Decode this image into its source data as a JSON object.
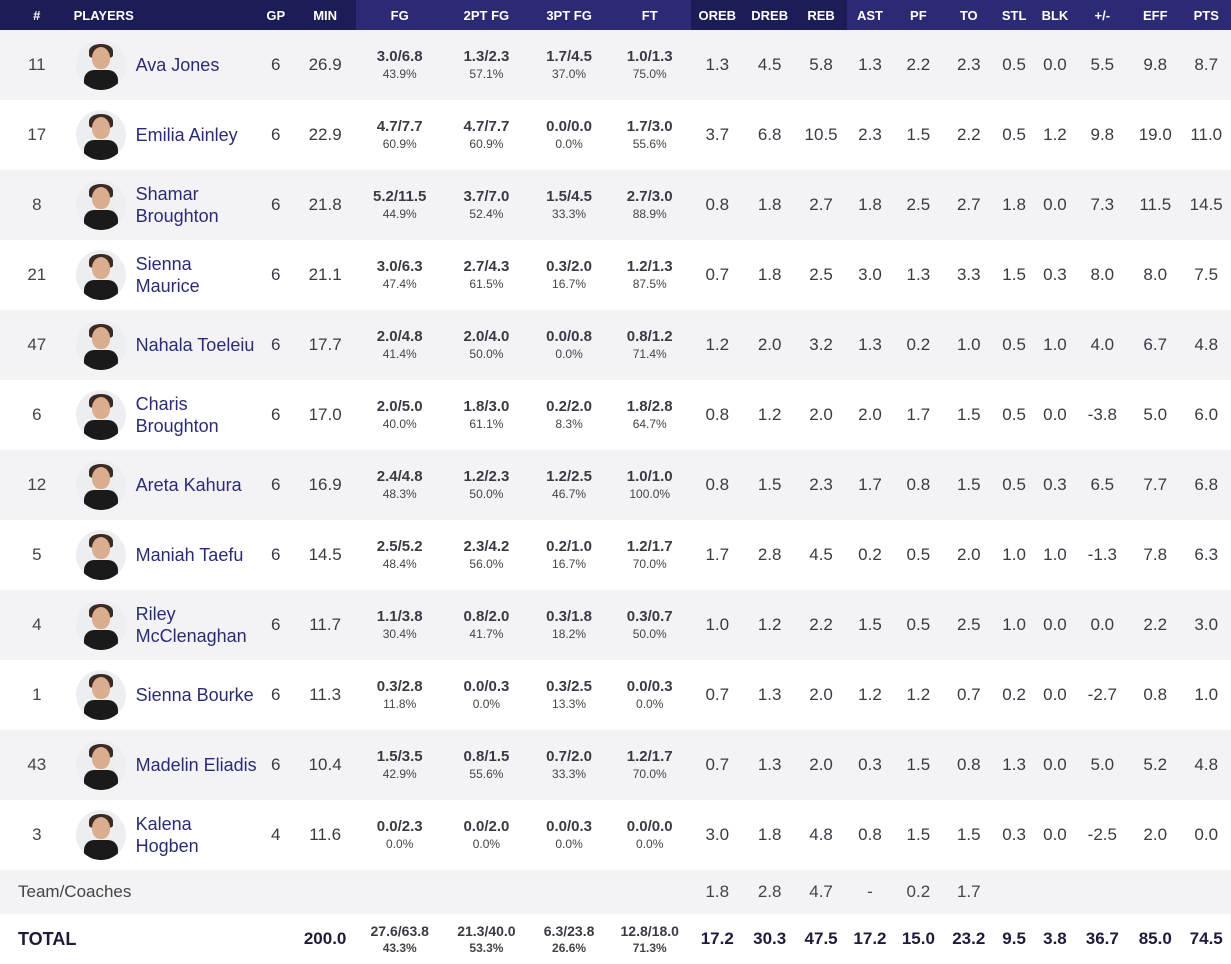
{
  "headers": [
    "#",
    "PLAYERS",
    "GP",
    "MIN",
    "FG",
    "2PT FG",
    "3PT FG",
    "FT",
    "OREB",
    "DREB",
    "REB",
    "AST",
    "PF",
    "TO",
    "STL",
    "BLK",
    "+/-",
    "EFF",
    "PTS"
  ],
  "players": [
    {
      "num": "11",
      "name_lines": [
        "Ava Jones"
      ],
      "gp": "6",
      "min": "26.9",
      "fg": [
        "3.0/6.8",
        "43.9%"
      ],
      "fg2": [
        "1.3/2.3",
        "57.1%"
      ],
      "fg3": [
        "1.7/4.5",
        "37.0%"
      ],
      "ft": [
        "1.0/1.3",
        "75.0%"
      ],
      "oreb": "1.3",
      "dreb": "4.5",
      "reb": "5.8",
      "ast": "1.3",
      "pf": "2.2",
      "to": "2.3",
      "stl": "0.5",
      "blk": "0.0",
      "pm": "5.5",
      "eff": "9.8",
      "pts": "8.7"
    },
    {
      "num": "17",
      "name_lines": [
        "Emilia Ainley"
      ],
      "gp": "6",
      "min": "22.9",
      "fg": [
        "4.7/7.7",
        "60.9%"
      ],
      "fg2": [
        "4.7/7.7",
        "60.9%"
      ],
      "fg3": [
        "0.0/0.0",
        "0.0%"
      ],
      "ft": [
        "1.7/3.0",
        "55.6%"
      ],
      "oreb": "3.7",
      "dreb": "6.8",
      "reb": "10.5",
      "ast": "2.3",
      "pf": "1.5",
      "to": "2.2",
      "stl": "0.5",
      "blk": "1.2",
      "pm": "9.8",
      "eff": "19.0",
      "pts": "11.0"
    },
    {
      "num": "8",
      "name_lines": [
        "Shamar",
        "Broughton"
      ],
      "gp": "6",
      "min": "21.8",
      "fg": [
        "5.2/11.5",
        "44.9%"
      ],
      "fg2": [
        "3.7/7.0",
        "52.4%"
      ],
      "fg3": [
        "1.5/4.5",
        "33.3%"
      ],
      "ft": [
        "2.7/3.0",
        "88.9%"
      ],
      "oreb": "0.8",
      "dreb": "1.8",
      "reb": "2.7",
      "ast": "1.8",
      "pf": "2.5",
      "to": "2.7",
      "stl": "1.8",
      "blk": "0.0",
      "pm": "7.3",
      "eff": "11.5",
      "pts": "14.5"
    },
    {
      "num": "21",
      "name_lines": [
        "Sienna",
        "Maurice"
      ],
      "gp": "6",
      "min": "21.1",
      "fg": [
        "3.0/6.3",
        "47.4%"
      ],
      "fg2": [
        "2.7/4.3",
        "61.5%"
      ],
      "fg3": [
        "0.3/2.0",
        "16.7%"
      ],
      "ft": [
        "1.2/1.3",
        "87.5%"
      ],
      "oreb": "0.7",
      "dreb": "1.8",
      "reb": "2.5",
      "ast": "3.0",
      "pf": "1.3",
      "to": "3.3",
      "stl": "1.5",
      "blk": "0.3",
      "pm": "8.0",
      "eff": "8.0",
      "pts": "7.5"
    },
    {
      "num": "47",
      "name_lines": [
        "Nahala Toeleiu"
      ],
      "gp": "6",
      "min": "17.7",
      "fg": [
        "2.0/4.8",
        "41.4%"
      ],
      "fg2": [
        "2.0/4.0",
        "50.0%"
      ],
      "fg3": [
        "0.0/0.8",
        "0.0%"
      ],
      "ft": [
        "0.8/1.2",
        "71.4%"
      ],
      "oreb": "1.2",
      "dreb": "2.0",
      "reb": "3.2",
      "ast": "1.3",
      "pf": "0.2",
      "to": "1.0",
      "stl": "0.5",
      "blk": "1.0",
      "pm": "4.0",
      "eff": "6.7",
      "pts": "4.8"
    },
    {
      "num": "6",
      "name_lines": [
        "Charis",
        "Broughton"
      ],
      "gp": "6",
      "min": "17.0",
      "fg": [
        "2.0/5.0",
        "40.0%"
      ],
      "fg2": [
        "1.8/3.0",
        "61.1%"
      ],
      "fg3": [
        "0.2/2.0",
        "8.3%"
      ],
      "ft": [
        "1.8/2.8",
        "64.7%"
      ],
      "oreb": "0.8",
      "dreb": "1.2",
      "reb": "2.0",
      "ast": "2.0",
      "pf": "1.7",
      "to": "1.5",
      "stl": "0.5",
      "blk": "0.0",
      "pm": "-3.8",
      "eff": "5.0",
      "pts": "6.0"
    },
    {
      "num": "12",
      "name_lines": [
        "Areta Kahura"
      ],
      "gp": "6",
      "min": "16.9",
      "fg": [
        "2.4/4.8",
        "48.3%"
      ],
      "fg2": [
        "1.2/2.3",
        "50.0%"
      ],
      "fg3": [
        "1.2/2.5",
        "46.7%"
      ],
      "ft": [
        "1.0/1.0",
        "100.0%"
      ],
      "oreb": "0.8",
      "dreb": "1.5",
      "reb": "2.3",
      "ast": "1.7",
      "pf": "0.8",
      "to": "1.5",
      "stl": "0.5",
      "blk": "0.3",
      "pm": "6.5",
      "eff": "7.7",
      "pts": "6.8"
    },
    {
      "num": "5",
      "name_lines": [
        "Maniah Taefu"
      ],
      "gp": "6",
      "min": "14.5",
      "fg": [
        "2.5/5.2",
        "48.4%"
      ],
      "fg2": [
        "2.3/4.2",
        "56.0%"
      ],
      "fg3": [
        "0.2/1.0",
        "16.7%"
      ],
      "ft": [
        "1.2/1.7",
        "70.0%"
      ],
      "oreb": "1.7",
      "dreb": "2.8",
      "reb": "4.5",
      "ast": "0.2",
      "pf": "0.5",
      "to": "2.0",
      "stl": "1.0",
      "blk": "1.0",
      "pm": "-1.3",
      "eff": "7.8",
      "pts": "6.3"
    },
    {
      "num": "4",
      "name_lines": [
        "Riley",
        "McClenaghan"
      ],
      "gp": "6",
      "min": "11.7",
      "fg": [
        "1.1/3.8",
        "30.4%"
      ],
      "fg2": [
        "0.8/2.0",
        "41.7%"
      ],
      "fg3": [
        "0.3/1.8",
        "18.2%"
      ],
      "ft": [
        "0.3/0.7",
        "50.0%"
      ],
      "oreb": "1.0",
      "dreb": "1.2",
      "reb": "2.2",
      "ast": "1.5",
      "pf": "0.5",
      "to": "2.5",
      "stl": "1.0",
      "blk": "0.0",
      "pm": "0.0",
      "eff": "2.2",
      "pts": "3.0"
    },
    {
      "num": "1",
      "name_lines": [
        "Sienna Bourke"
      ],
      "gp": "6",
      "min": "11.3",
      "fg": [
        "0.3/2.8",
        "11.8%"
      ],
      "fg2": [
        "0.0/0.3",
        "0.0%"
      ],
      "fg3": [
        "0.3/2.5",
        "13.3%"
      ],
      "ft": [
        "0.0/0.3",
        "0.0%"
      ],
      "oreb": "0.7",
      "dreb": "1.3",
      "reb": "2.0",
      "ast": "1.2",
      "pf": "1.2",
      "to": "0.7",
      "stl": "0.2",
      "blk": "0.0",
      "pm": "-2.7",
      "eff": "0.8",
      "pts": "1.0"
    },
    {
      "num": "43",
      "name_lines": [
        "Madelin Eliadis"
      ],
      "gp": "6",
      "min": "10.4",
      "fg": [
        "1.5/3.5",
        "42.9%"
      ],
      "fg2": [
        "0.8/1.5",
        "55.6%"
      ],
      "fg3": [
        "0.7/2.0",
        "33.3%"
      ],
      "ft": [
        "1.2/1.7",
        "70.0%"
      ],
      "oreb": "0.7",
      "dreb": "1.3",
      "reb": "2.0",
      "ast": "0.3",
      "pf": "1.5",
      "to": "0.8",
      "stl": "1.3",
      "blk": "0.0",
      "pm": "5.0",
      "eff": "5.2",
      "pts": "4.8"
    },
    {
      "num": "3",
      "name_lines": [
        "Kalena Hogben"
      ],
      "gp": "4",
      "min": "11.6",
      "fg": [
        "0.0/2.3",
        "0.0%"
      ],
      "fg2": [
        "0.0/2.0",
        "0.0%"
      ],
      "fg3": [
        "0.0/0.3",
        "0.0%"
      ],
      "ft": [
        "0.0/0.0",
        "0.0%"
      ],
      "oreb": "3.0",
      "dreb": "1.8",
      "reb": "4.8",
      "ast": "0.8",
      "pf": "1.5",
      "to": "1.5",
      "stl": "0.3",
      "blk": "0.0",
      "pm": "-2.5",
      "eff": "2.0",
      "pts": "0.0"
    }
  ],
  "team_row": {
    "label": "Team/Coaches",
    "oreb": "1.8",
    "dreb": "2.8",
    "reb": "4.7",
    "ast": "-",
    "pf": "0.2",
    "to": "1.7"
  },
  "total_row": {
    "label": "TOTAL",
    "min": "200.0",
    "fg": [
      "27.6/63.8",
      "43.3%"
    ],
    "fg2": [
      "21.3/40.0",
      "53.3%"
    ],
    "fg3": [
      "6.3/23.8",
      "26.6%"
    ],
    "ft": [
      "12.8/18.0",
      "71.3%"
    ],
    "oreb": "17.2",
    "dreb": "30.3",
    "reb": "47.5",
    "ast": "17.2",
    "pf": "15.0",
    "to": "23.2",
    "stl": "9.5",
    "blk": "3.8",
    "pm": "36.7",
    "eff": "85.0",
    "pts": "74.5"
  }
}
